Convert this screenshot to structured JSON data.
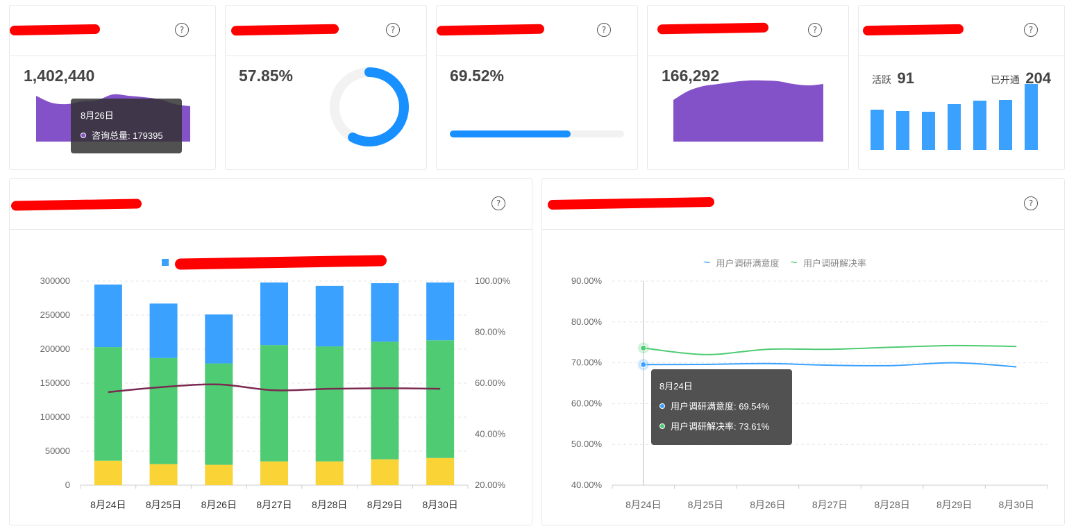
{
  "help_glyph": "?",
  "cards": {
    "consult_total": {
      "value": "1,402,440",
      "spark": [
        160,
        170,
        172,
        168,
        166,
        158,
        160,
        162,
        165,
        172,
        175
      ],
      "tooltip": {
        "date": "8月26日",
        "label": "咨询总量: 179395"
      }
    },
    "donut": {
      "value": "57.85%",
      "fraction": 0.5785,
      "track_color": "#f2f2f2",
      "fill_color": "#1890ff"
    },
    "progress": {
      "value": "69.52%",
      "fraction": 0.6952,
      "track_color": "#f2f2f2",
      "fill_color": "#1890ff"
    },
    "area": {
      "value": "166,292",
      "spark": [
        178,
        165,
        158,
        155,
        152,
        150,
        150,
        151,
        155,
        157,
        155
      ]
    },
    "active": {
      "active_label": "活跃",
      "active_value": "91",
      "open_label": "已开通",
      "open_value": "204",
      "bars": [
        58,
        56,
        55,
        66,
        71,
        72,
        95
      ]
    }
  },
  "chart_data": [
    {
      "type": "bar",
      "stacked": true,
      "categories": [
        "8月24日",
        "8月25日",
        "8月26日",
        "8月27日",
        "8月28日",
        "8月29日",
        "8月30日"
      ],
      "series": [
        {
          "values": [
            36000,
            31000,
            30000,
            35000,
            35000,
            38000,
            40000
          ],
          "color": "#fad337"
        },
        {
          "values": [
            167000,
            156000,
            149000,
            171000,
            169000,
            173000,
            173000
          ],
          "color": "#4ecb73"
        },
        {
          "values": [
            92000,
            80000,
            72000,
            92000,
            89000,
            86000,
            85000
          ],
          "color": "#3aa1ff"
        },
        {
          "type": "line",
          "axis": "right",
          "values": [
            56.5,
            58.5,
            59.5,
            57.2,
            57.8,
            58.0,
            57.8
          ],
          "color": "#7b2950"
        }
      ],
      "y_ticks": [
        "300000",
        "250000",
        "200000",
        "150000",
        "100000",
        "50000",
        "0"
      ],
      "ylim": [
        0,
        300000
      ],
      "y2_ticks": [
        "100.00%",
        "80.00%",
        "60.00%",
        "40.00%",
        "20.00%"
      ],
      "y2lim": [
        20,
        100
      ],
      "legend_color": "#3aa1ff"
    },
    {
      "type": "line",
      "categories": [
        "8月24日",
        "8月25日",
        "8月26日",
        "8月27日",
        "8月28日",
        "8月29日",
        "8月30日"
      ],
      "series": [
        {
          "name": "用户调研满意度",
          "values": [
            69.54,
            69.6,
            69.8,
            69.4,
            69.3,
            70.0,
            69.0
          ],
          "color": "#3aa1ff"
        },
        {
          "name": "用户调研解决率",
          "values": [
            73.61,
            72.0,
            73.3,
            73.3,
            73.8,
            74.2,
            74.0
          ],
          "color": "#4ecb73"
        }
      ],
      "y_ticks": [
        "90.00%",
        "80.00%",
        "70.00%",
        "60.00%",
        "50.00%",
        "40.00%"
      ],
      "ylim": [
        40,
        90
      ],
      "legend_position": "top",
      "tooltip": {
        "date": "8月24日",
        "line1": "用户调研满意度: 69.54%",
        "line2": "用户调研解决率: 73.61%"
      }
    }
  ],
  "colors": {
    "purple": "#8452c8",
    "blue": "#3aa1ff",
    "green": "#4ecb73",
    "yellow": "#fad337",
    "red": "#ff0000"
  }
}
